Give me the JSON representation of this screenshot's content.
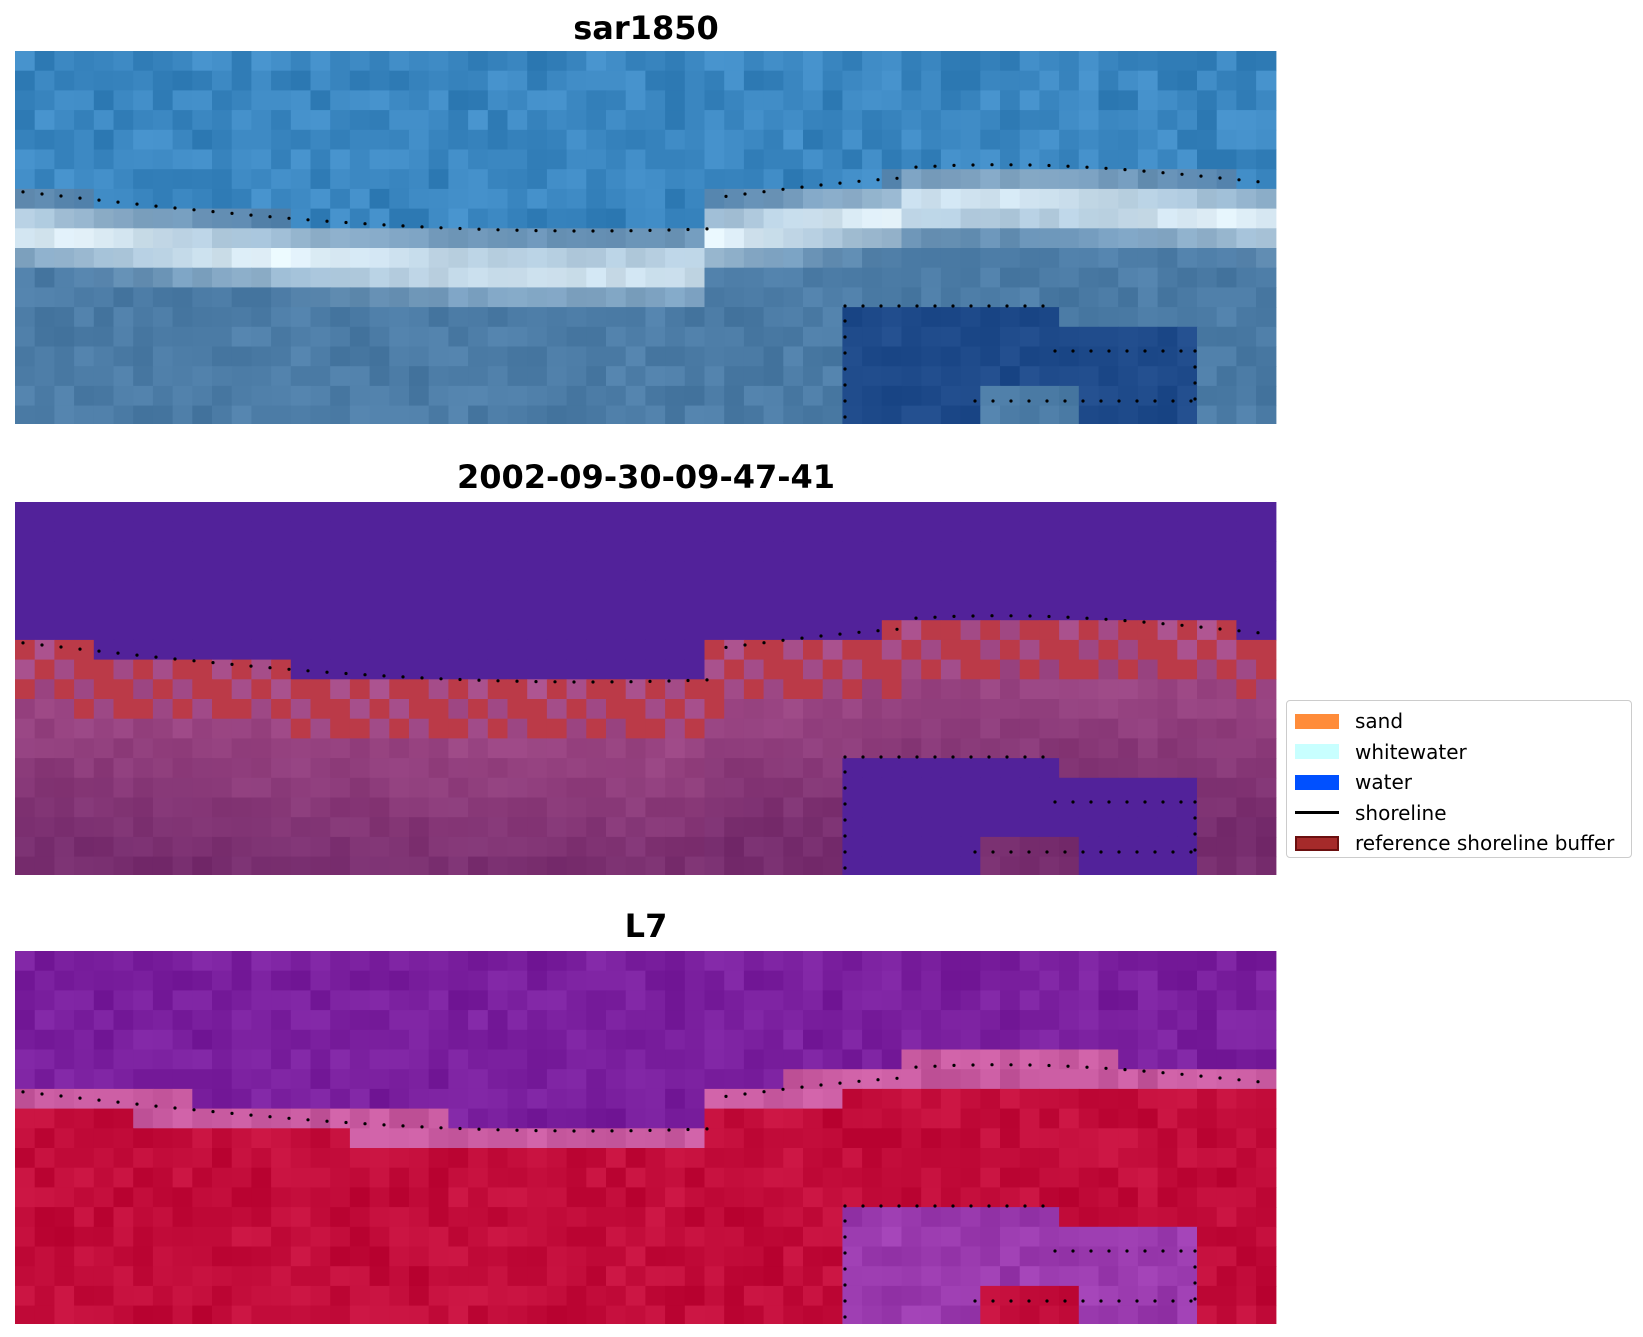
{
  "panels": [
    {
      "id": "rgb",
      "title": "sar1850",
      "style": "rgb"
    },
    {
      "id": "classified",
      "title": "2002-09-30-09-47-41",
      "style": "classified"
    },
    {
      "id": "index",
      "title": "L7",
      "style": "index"
    }
  ],
  "legend": {
    "items": [
      {
        "label": "sand",
        "kind": "patch",
        "color": "#ff8c3a",
        "edge": ""
      },
      {
        "label": "whitewater",
        "kind": "patch",
        "color": "#c8ffff",
        "edge": ""
      },
      {
        "label": "water",
        "kind": "patch",
        "color": "#0050ff",
        "edge": ""
      },
      {
        "label": "shoreline",
        "kind": "line",
        "color": "#000000",
        "edge": ""
      },
      {
        "label": "reference shoreline buffer",
        "kind": "patch",
        "color": "#a52a2a",
        "edge": "#6b0f0f"
      }
    ]
  },
  "colors": {
    "rgb_ocean": "#3a86c0",
    "rgb_surf": "#e6f4fb",
    "rgb_land": "#4c7ca6",
    "rgb_pond": "#1e4a8a",
    "class_water": "#52229a",
    "class_land": "#772d6e",
    "class_buffer": "#bb3a48",
    "index_water": "#7a1f9e",
    "index_sand": "#c20c3a",
    "index_pond": "#9a3aae",
    "shoreline": "#000000"
  }
}
